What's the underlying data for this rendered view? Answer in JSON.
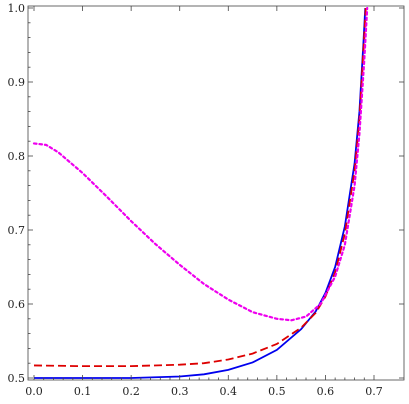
{
  "chart_data": {
    "type": "line",
    "title": "",
    "xlabel": "",
    "ylabel": "",
    "xlim": [
      0.0,
      0.7
    ],
    "ylim": [
      0.5,
      1.0
    ],
    "x_ticks": [
      "0.0",
      "0.1",
      "0.2",
      "0.3",
      "0.4",
      "0.5",
      "0.6",
      "0.7"
    ],
    "y_ticks": [
      "0.5",
      "0.6",
      "0.7",
      "0.8",
      "0.9",
      "1.0"
    ],
    "grid": false,
    "series": [
      {
        "color": "#0000ee",
        "dash": "solid",
        "points": [
          [
            0.0,
            0.5
          ],
          [
            0.1,
            0.5
          ],
          [
            0.2,
            0.5
          ],
          [
            0.3,
            0.502
          ],
          [
            0.35,
            0.505
          ],
          [
            0.4,
            0.511
          ],
          [
            0.45,
            0.521
          ],
          [
            0.5,
            0.538
          ],
          [
            0.55,
            0.566
          ],
          [
            0.58,
            0.59
          ],
          [
            0.6,
            0.615
          ],
          [
            0.62,
            0.65
          ],
          [
            0.64,
            0.705
          ],
          [
            0.66,
            0.79
          ],
          [
            0.67,
            0.86
          ],
          [
            0.678,
            0.95
          ],
          [
            0.682,
            1.0
          ]
        ]
      },
      {
        "color": "#dd0000",
        "dash": "dashed",
        "points": [
          [
            0.0,
            0.517
          ],
          [
            0.1,
            0.516
          ],
          [
            0.2,
            0.516
          ],
          [
            0.3,
            0.518
          ],
          [
            0.35,
            0.52
          ],
          [
            0.4,
            0.525
          ],
          [
            0.45,
            0.533
          ],
          [
            0.5,
            0.546
          ],
          [
            0.55,
            0.568
          ],
          [
            0.58,
            0.588
          ],
          [
            0.6,
            0.61
          ],
          [
            0.62,
            0.643
          ],
          [
            0.64,
            0.695
          ],
          [
            0.66,
            0.78
          ],
          [
            0.67,
            0.85
          ],
          [
            0.678,
            0.94
          ],
          [
            0.683,
            1.0
          ]
        ]
      },
      {
        "color": "#ee00ee",
        "dash": "dotted",
        "points": [
          [
            0.0,
            0.817
          ],
          [
            0.025,
            0.815
          ],
          [
            0.05,
            0.805
          ],
          [
            0.1,
            0.777
          ],
          [
            0.15,
            0.745
          ],
          [
            0.2,
            0.712
          ],
          [
            0.25,
            0.681
          ],
          [
            0.3,
            0.653
          ],
          [
            0.35,
            0.627
          ],
          [
            0.4,
            0.606
          ],
          [
            0.45,
            0.589
          ],
          [
            0.5,
            0.58
          ],
          [
            0.53,
            0.578
          ],
          [
            0.56,
            0.583
          ],
          [
            0.59,
            0.6
          ],
          [
            0.62,
            0.637
          ],
          [
            0.64,
            0.68
          ],
          [
            0.66,
            0.76
          ],
          [
            0.67,
            0.83
          ],
          [
            0.68,
            0.93
          ],
          [
            0.686,
            1.0
          ]
        ]
      }
    ]
  }
}
